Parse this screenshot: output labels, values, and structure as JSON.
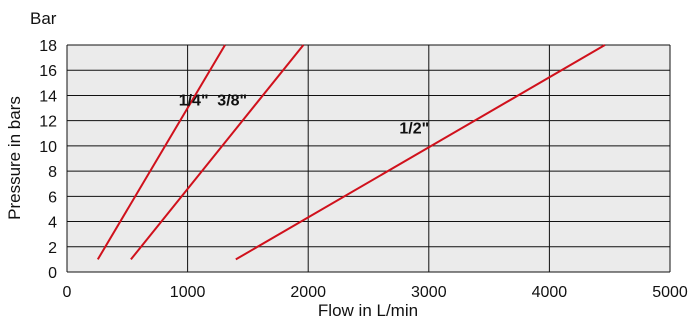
{
  "chart_data": {
    "type": "line",
    "title": "",
    "unit_label": "Bar",
    "xlabel": "Flow in L/min",
    "ylabel": "Pressure in bars",
    "xlim": [
      0,
      5000
    ],
    "ylim": [
      0,
      18
    ],
    "x_ticks": [
      0,
      1000,
      2000,
      3000,
      4000,
      5000
    ],
    "y_ticks": [
      0,
      2,
      4,
      6,
      8,
      10,
      12,
      14,
      16,
      18
    ],
    "grid": {
      "horizontal": true,
      "vertical": true
    },
    "colors": {
      "plot_background": "#ebebeb",
      "grid": "#111111",
      "series": "#d0111c",
      "text": "#111111"
    },
    "series": [
      {
        "name": "1/4\"",
        "points": [
          [
            255,
            1
          ],
          [
            1310,
            18
          ]
        ],
        "label_at": [
          1050,
          13.2
        ]
      },
      {
        "name": "3/8\"",
        "points": [
          [
            530,
            1
          ],
          [
            1960,
            18
          ]
        ],
        "label_at": [
          1370,
          13.2
        ]
      },
      {
        "name": "1/2\"",
        "points": [
          [
            1400,
            1
          ],
          [
            4460,
            18
          ]
        ],
        "label_at": [
          2880,
          11.0
        ]
      }
    ]
  }
}
